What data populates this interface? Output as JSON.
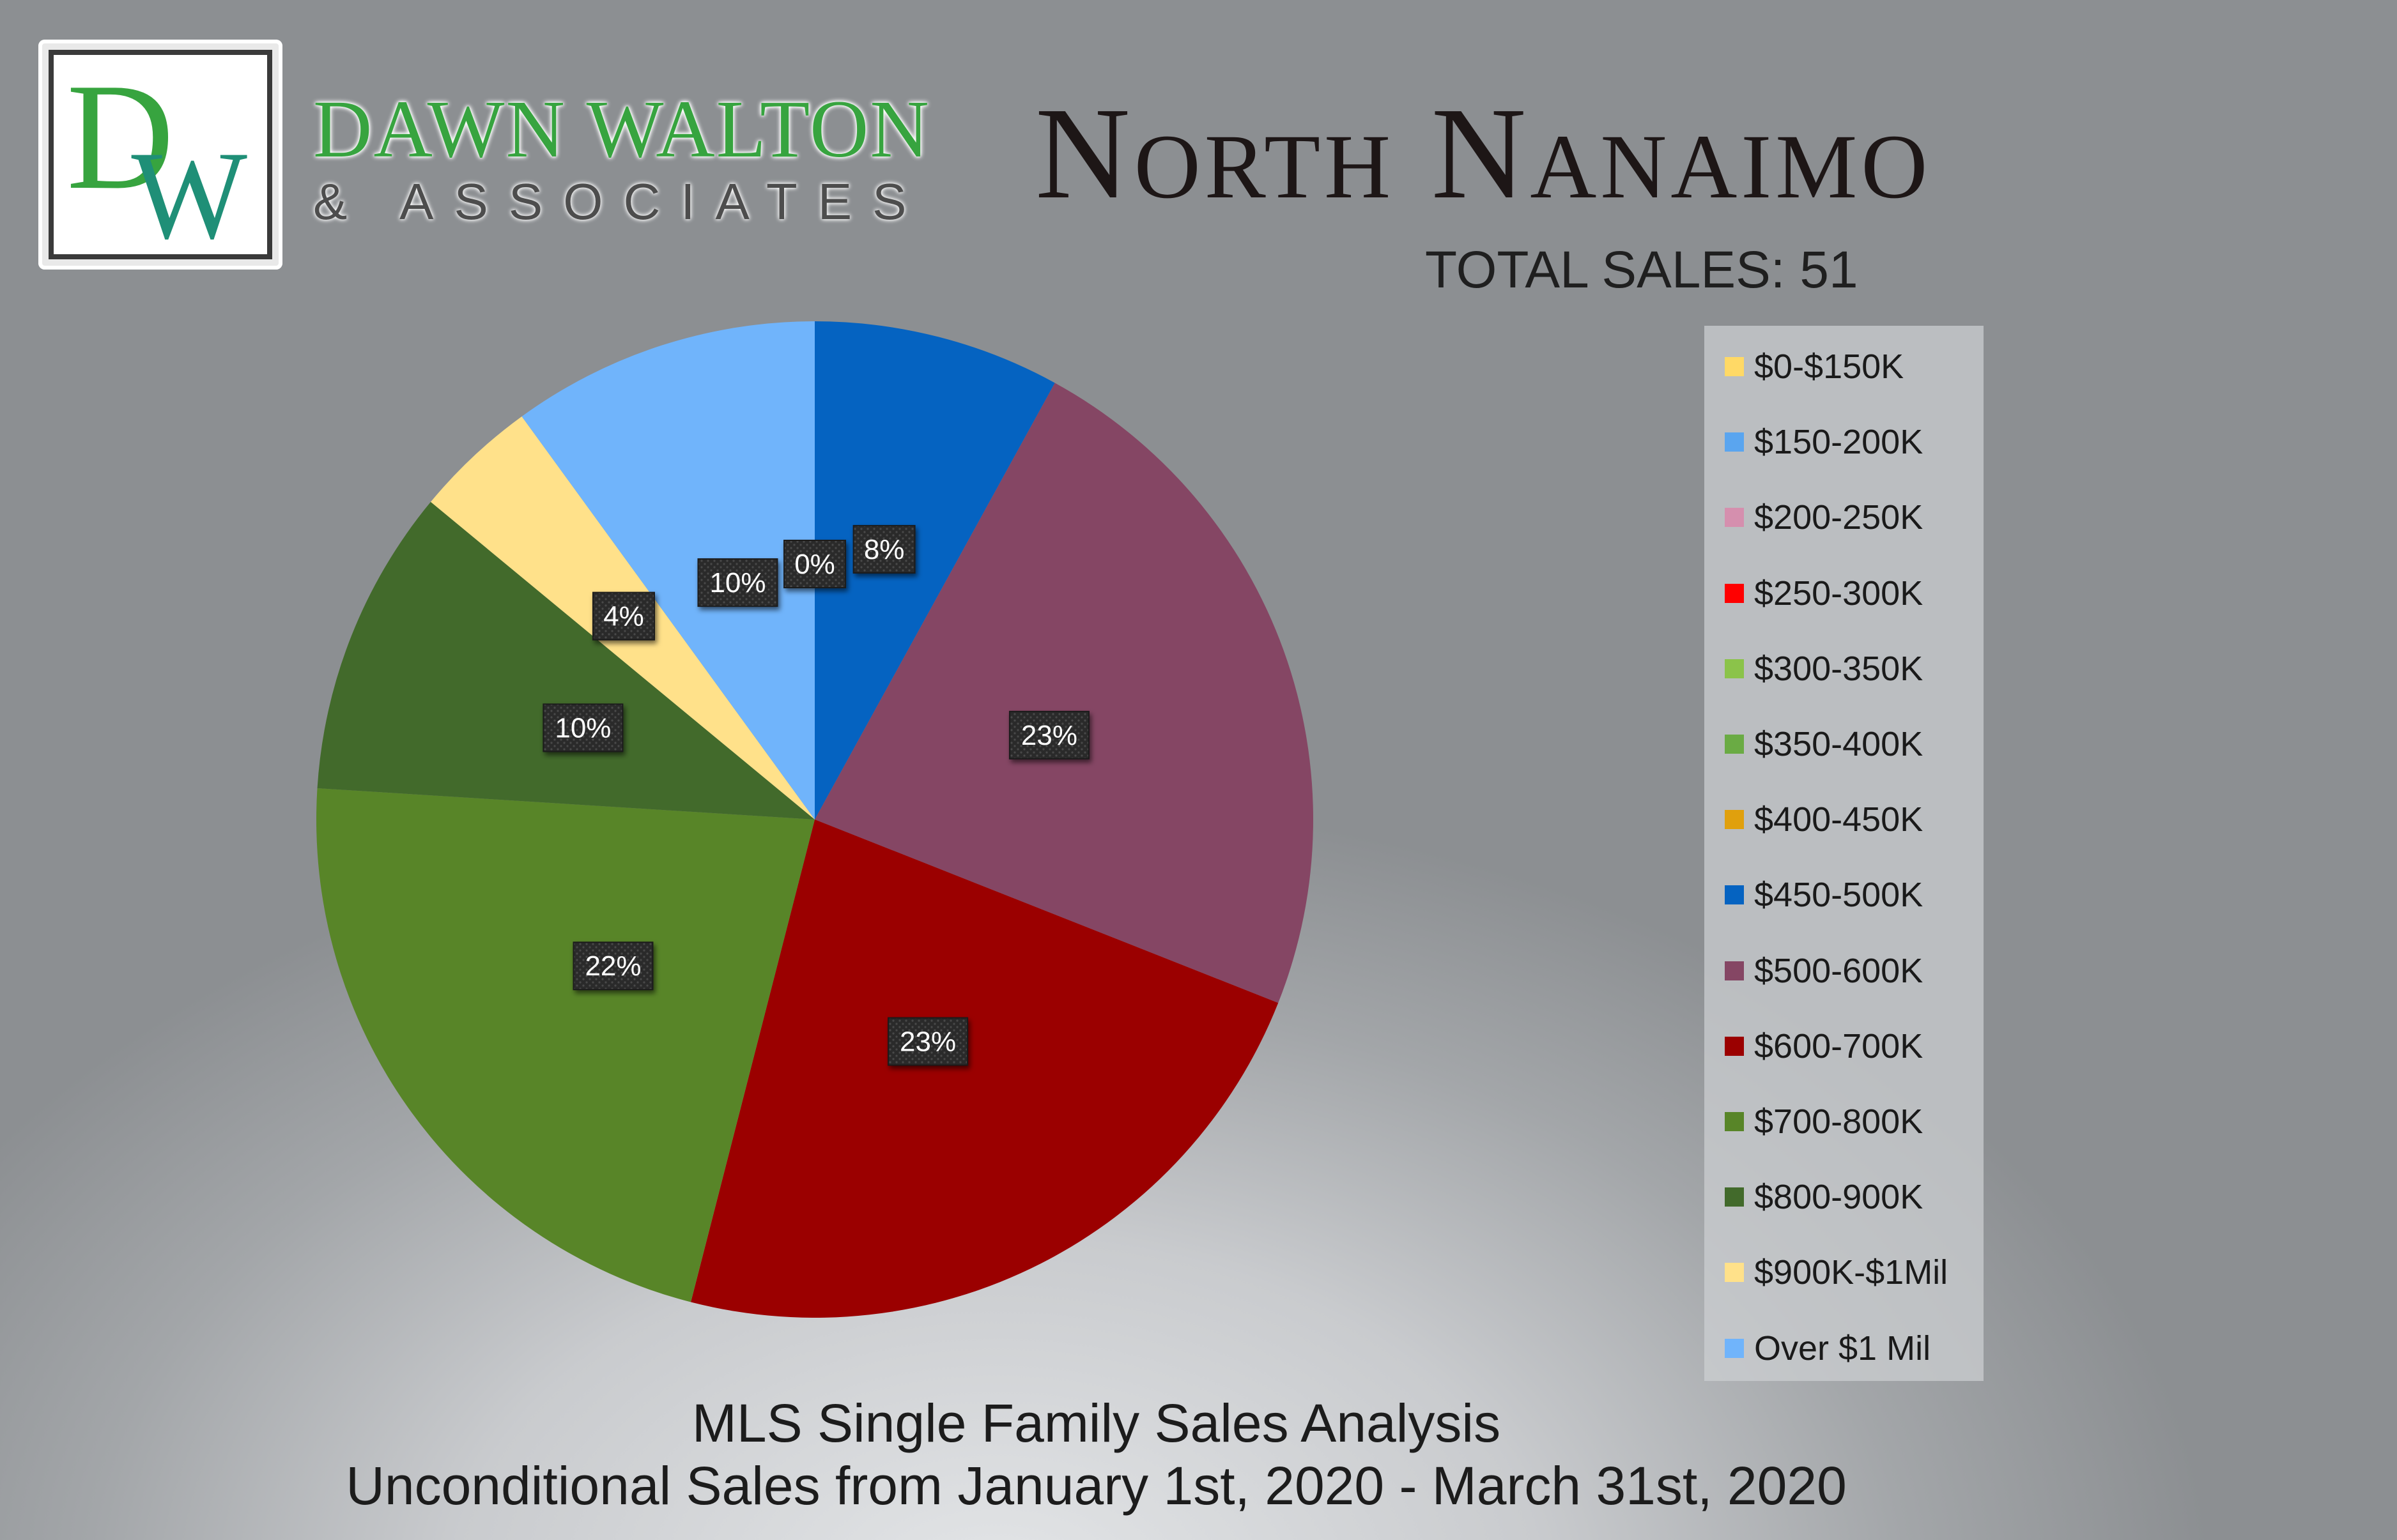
{
  "brand": {
    "monogram": "DW",
    "name": "DAWN WALTON",
    "subtitle": "& ASSOCIATES",
    "green": "#37a43f",
    "teal": "#1f8f77"
  },
  "header": {
    "title": "North Nanaimo",
    "total_sales": "TOTAL SALES: 51"
  },
  "footer": {
    "line1": "MLS Single Family Sales Analysis",
    "line2": "Unconditional Sales from January 1st, 2020 - March 31st, 2020"
  },
  "chart_data": {
    "type": "pie",
    "title": "North Nanaimo",
    "subtitle": "TOTAL SALES: 51",
    "categories": [
      "$0-$150K",
      "$150-200K",
      "$200-250K",
      "$250-300K",
      "$300-350K",
      "$350-400K",
      "$400-450K",
      "$450-500K",
      "$500-600K",
      "$600-700K",
      "$700-800K",
      "$800-900K",
      "$900K-$1Mil",
      "Over $1 Mil"
    ],
    "values": [
      0,
      0,
      0,
      0,
      0,
      0,
      0,
      8,
      23,
      23,
      22,
      10,
      4,
      10
    ],
    "colors": [
      "#ffd966",
      "#5aa5ef",
      "#d58fae",
      "#ff0000",
      "#8bc34a",
      "#6aab44",
      "#e0a00d",
      "#0563c1",
      "#854664",
      "#9b0000",
      "#588528",
      "#426a2b",
      "#ffe18a",
      "#70b4fb"
    ],
    "data_labels": [
      "",
      "",
      "",
      "",
      "",
      "",
      "",
      "8%",
      "23%",
      "23%",
      "22%",
      "10%",
      "4%",
      "10%"
    ],
    "extra_label": "0%",
    "legend_position": "right",
    "start_angle_deg": 0,
    "direction": "clockwise"
  }
}
